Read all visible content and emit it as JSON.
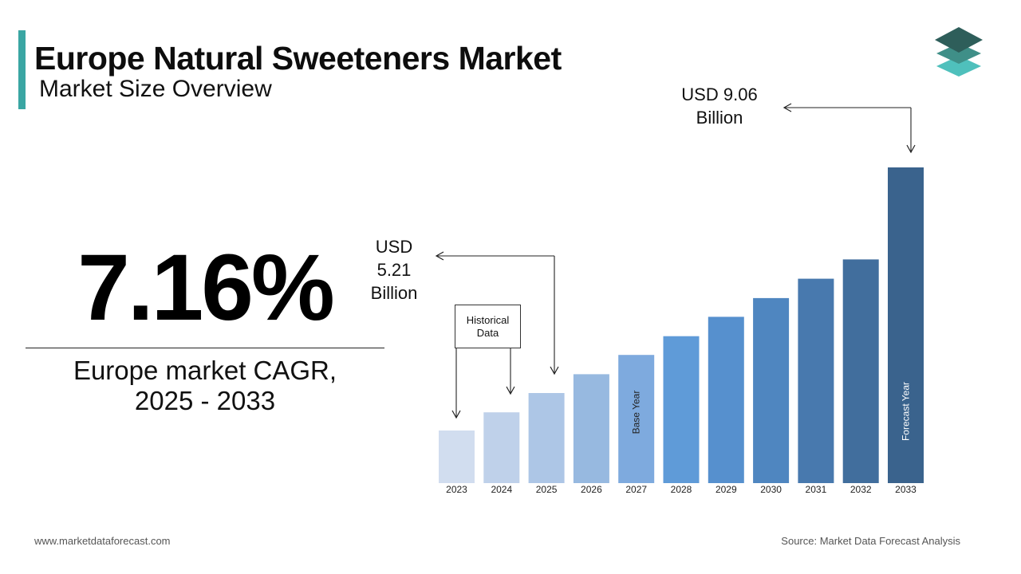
{
  "header": {
    "title": "Europe Natural Sweeteners Market",
    "subtitle": "Market Size Overview"
  },
  "logo": {
    "icon": "stacked-layers-icon",
    "colors": [
      "#2e5e5a",
      "#3f8f88",
      "#4fc0bc"
    ]
  },
  "kpi": {
    "value": "7.16%",
    "label_line1": "Europe market CAGR,",
    "label_line2": "2025 - 2033"
  },
  "callouts": {
    "end": {
      "line1": "USD 9.06",
      "line2": "Billion"
    },
    "start": {
      "line1": "USD",
      "line2": "5.21",
      "line3": "Billion"
    },
    "historical": {
      "line1": "Historical",
      "line2": "Data"
    }
  },
  "chart_data": {
    "type": "bar",
    "title": "",
    "categories": [
      "2023",
      "2024",
      "2025",
      "2026",
      "2027",
      "2028",
      "2029",
      "2030",
      "2031",
      "2032",
      "2033"
    ],
    "values": [
      4.57,
      4.88,
      5.21,
      5.53,
      5.86,
      6.18,
      6.51,
      6.83,
      7.16,
      7.49,
      9.06
    ],
    "unit": "USD Billion",
    "bar_labels": {
      "2027": "Base Year",
      "2033": "Forecast Year"
    },
    "colors": [
      "#d1ddef",
      "#bfd1ea",
      "#adc6e6",
      "#97b9e0",
      "#7eaade",
      "#5f9bd8",
      "#5690ce",
      "#4f86c0",
      "#4879ae",
      "#416e9d",
      "#3a638d"
    ],
    "grid": false,
    "legend": "none"
  },
  "footer": {
    "website": "www.marketdataforecast.com",
    "source": "Source: Market Data Forecast Analysis"
  }
}
